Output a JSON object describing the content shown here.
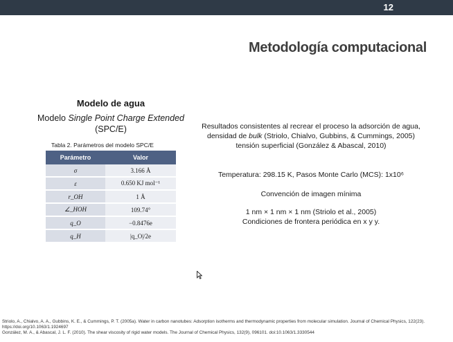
{
  "slide": {
    "page_number": "12",
    "title": "Metodología computacional"
  },
  "left": {
    "heading": "Modelo de agua",
    "model_prefix": "Modelo ",
    "model_italic": "Single Point Charge Extended",
    "model_abbrev": "(SPC/E)",
    "table_caption": "Tabla 2. Parámetros del modelo SPC/E",
    "table": {
      "headers": [
        "Parámetro",
        "Valor"
      ],
      "rows": [
        [
          "σ",
          "3.166 Å"
        ],
        [
          "ε",
          "0.650 KJ mol⁻¹"
        ],
        [
          "r_OH",
          "1 Å"
        ],
        [
          "∠_HOH",
          "109.74°"
        ],
        [
          "q_O",
          "−0.8476e"
        ],
        [
          "q_H",
          "|q_O|/2e"
        ]
      ]
    }
  },
  "right": {
    "para1_a": "Resultados consistentes al recrear el proceso la adsorción de agua, densidad de ",
    "para1_italic": "bulk",
    "para1_b": " (Striolo, Chialvo, Gubbins, & Cummings, 2005) tensión superficial (González & Abascal, 2010)",
    "temperature": "Temperatura: 298.15 K, Pasos Monte Carlo (MCS): 1x10⁶",
    "convention": "Convención de imagen mínima",
    "box": "1 nm × 1 nm × 1 nm (Striolo et al., 2005)",
    "boundary": "Condiciones de frontera periódica en x y y."
  },
  "references": [
    "Striolo, A., Chialvo, A. A., Gubbins, K. E., & Cummings, P. T. (2005a). Water in carbon nanotubes: Adsorption isotherms and thermodynamic properties from molecular simulation. Journal of Chemical Physics, 122(23). https://doi.org/10.1063/1.1924697",
    "González, M. A., & Abascal, J. L. F. (2010). The shear viscosity of rigid water models. The Journal of Chemical Physics, 132(9), 096101. doi:10.1063/1.3330544"
  ]
}
